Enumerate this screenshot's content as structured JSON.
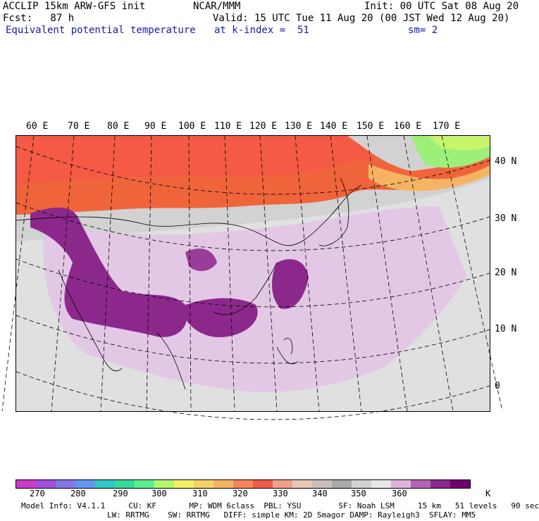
{
  "header": {
    "line1_left": "ACCLIP 15km ARW-GFS init",
    "line1_center": "NCAR/MMM",
    "line1_right": "Init: 00 UTC Sat 08 Aug 20",
    "line2_left": "Fcst:   87 h",
    "line2_right": "Valid: 15 UTC Tue 11 Aug 20 (00 JST Wed 12 Aug 20)",
    "line3_field": "Equivalent potential temperature",
    "line3_level": "at k-index =  51",
    "line3_smooth": "sm= 2"
  },
  "map": {
    "lon_labels": [
      "60 E",
      "70 E",
      "80 E",
      "90 E",
      "100 E",
      "110 E",
      "120 E",
      "130 E",
      "140 E",
      "150 E",
      "160 E",
      "170 E"
    ],
    "lat_labels": [
      "40 N",
      "30 N",
      "20 N",
      "10 N",
      "0"
    ]
  },
  "colorbar": {
    "colors": [
      "#c83cc8",
      "#a050dc",
      "#8278e6",
      "#6496f0",
      "#32c8c8",
      "#32dc96",
      "#5af08c",
      "#b4f56e",
      "#f0f064",
      "#f5d264",
      "#f5b464",
      "#f5825a",
      "#f05a46",
      "#f0a08c",
      "#e6c8b4",
      "#c8bebe",
      "#aaaaaa",
      "#d2d2d2",
      "#e6e6e6",
      "#dcb4dc",
      "#b464b4",
      "#8c288c",
      "#6e006e"
    ],
    "tick_labels": [
      "270",
      "280",
      "290",
      "300",
      "310",
      "320",
      "330",
      "340",
      "350",
      "360",
      "K"
    ],
    "units": "K"
  },
  "footer": {
    "line1": "Model Info: V4.1.1     CU: KF       MP: WDM 6class  PBL: YSU        SF: Noah LSM     15 km   51 levels   90 sec",
    "line2": "LW: RRTMG    SW: RRTMG   DIFF: simple KM: 2D Smagor DAMP: Rayleigh3  SFLAY: MM5"
  }
}
